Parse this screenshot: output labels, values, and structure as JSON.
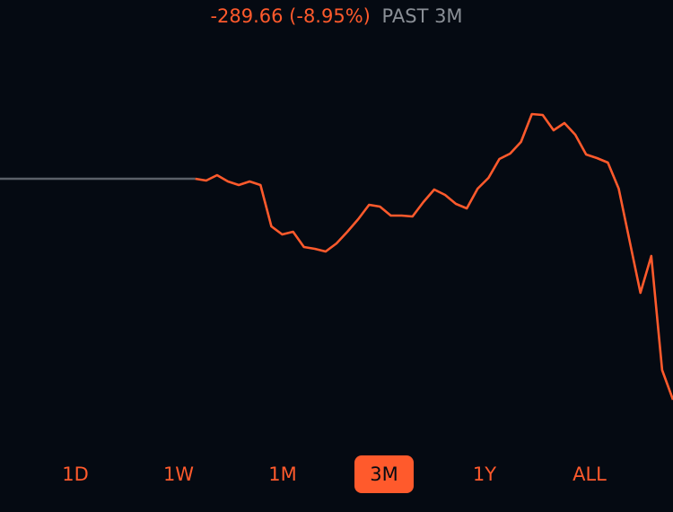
{
  "header": {
    "change": "-289.66 (-8.95%)",
    "period": "PAST 3M"
  },
  "chart_data": {
    "type": "line",
    "ylim": [
      -100,
      400
    ],
    "series": [
      {
        "color": "#5b6068",
        "values": [
          201,
          201,
          201,
          201,
          201,
          201,
          201,
          201,
          201,
          201,
          201,
          201,
          201,
          201,
          201,
          201,
          201,
          201,
          201,
          null,
          null,
          null,
          null,
          null,
          null,
          null,
          null,
          null,
          null,
          null,
          null,
          null,
          null,
          null,
          null,
          null,
          null,
          null,
          null,
          null,
          null,
          null,
          null,
          null,
          null,
          null,
          null,
          null,
          null,
          null,
          null,
          null,
          null,
          null,
          null,
          null,
          null,
          null,
          null,
          null,
          null,
          null,
          null
        ]
      },
      {
        "color": "#ff5a2c",
        "values": [
          null,
          null,
          null,
          null,
          null,
          null,
          null,
          null,
          null,
          null,
          null,
          null,
          null,
          null,
          null,
          null,
          null,
          null,
          201,
          199,
          205,
          198,
          194,
          198,
          194,
          148,
          139,
          142,
          125,
          123,
          120,
          129,
          142,
          156,
          172,
          170,
          160,
          160,
          159,
          175,
          189,
          183,
          173,
          168,
          190,
          202,
          223,
          229,
          242,
          273,
          272,
          255,
          263,
          250,
          228,
          224,
          219,
          190,
          132,
          74,
          115,
          -12,
          -45
        ]
      }
    ]
  },
  "range_buttons": {
    "options": [
      "1D",
      "1W",
      "1M",
      "3M",
      "1Y",
      "ALL"
    ],
    "selected": 3
  }
}
